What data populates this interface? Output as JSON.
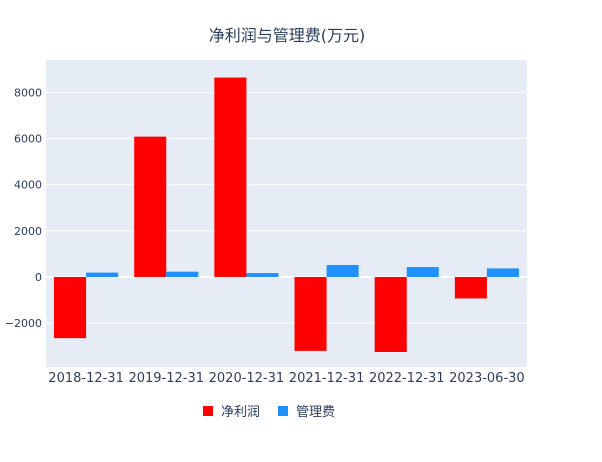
{
  "chart_data": {
    "type": "bar",
    "title": "净利润与管理费(万元)",
    "xlabel": "",
    "ylabel": "",
    "categories": [
      "2018-12-31",
      "2019-12-31",
      "2020-12-31",
      "2021-12-31",
      "2022-12-31",
      "2023-06-30"
    ],
    "series": [
      {
        "name": "净利润",
        "color": "#ff0000",
        "values": [
          -2650,
          6080,
          8640,
          -3200,
          -3250,
          -930
        ]
      },
      {
        "name": "管理费",
        "color": "#1e90ff",
        "values": [
          190,
          230,
          170,
          520,
          430,
          370
        ]
      }
    ],
    "ylim": [
      -3900,
      9400
    ],
    "yticks": [
      -2000,
      0,
      2000,
      4000,
      6000,
      8000
    ],
    "ytick_labels": [
      "−2000",
      "0",
      "2000",
      "4000",
      "6000",
      "8000"
    ],
    "grid": true,
    "legend_position": "bottom-center",
    "plot_background": "#e5ecf6"
  }
}
